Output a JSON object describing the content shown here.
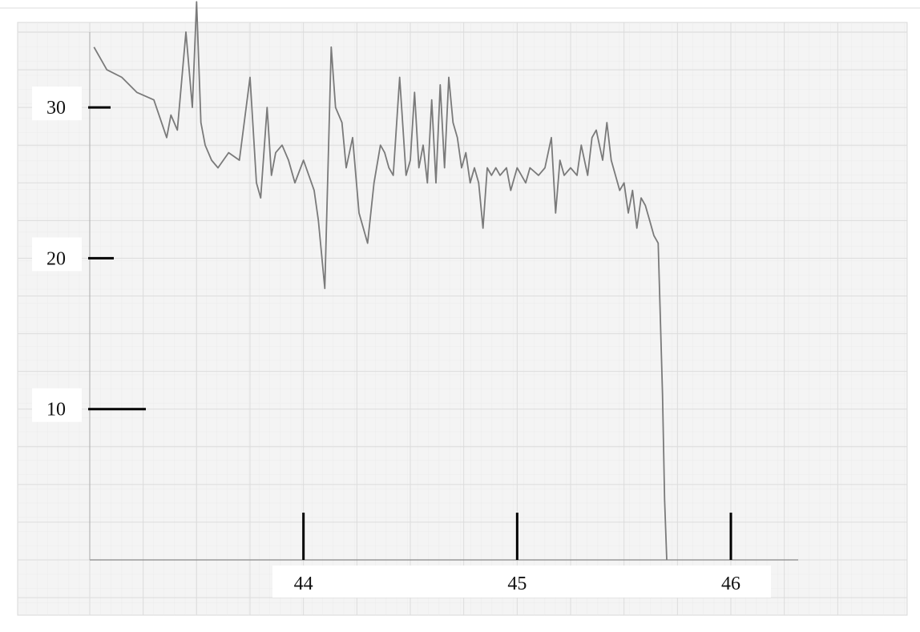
{
  "chart_data": {
    "type": "line",
    "title": "",
    "xlabel": "",
    "ylabel": "",
    "xlim": [
      43,
      46.33
    ],
    "ylim": [
      0,
      35
    ],
    "x_ticks": [
      {
        "value": 44,
        "label": "44"
      },
      {
        "value": 45,
        "label": "45"
      },
      {
        "value": 46,
        "label": "46"
      }
    ],
    "y_ticks": [
      {
        "value": 10,
        "label": "10"
      },
      {
        "value": 20,
        "label": "20"
      },
      {
        "value": 30,
        "label": "30"
      }
    ],
    "grid": true,
    "series": [
      {
        "color": "#7a7a7a",
        "x": [
          43.02,
          43.08,
          43.15,
          43.22,
          43.3,
          43.36,
          43.38,
          43.41,
          43.45,
          43.48,
          43.5,
          43.52,
          43.54,
          43.57,
          43.6,
          43.65,
          43.7,
          43.75,
          43.78,
          43.8,
          43.83,
          43.85,
          43.87,
          43.9,
          43.93,
          43.96,
          44.0,
          44.05,
          44.07,
          44.1,
          44.13,
          44.15,
          44.18,
          44.2,
          44.23,
          44.26,
          44.3,
          44.33,
          44.36,
          44.38,
          44.4,
          44.42,
          44.45,
          44.48,
          44.5,
          44.52,
          44.54,
          44.56,
          44.58,
          44.6,
          44.62,
          44.64,
          44.66,
          44.68,
          44.7,
          44.72,
          44.74,
          44.76,
          44.78,
          44.8,
          44.82,
          44.84,
          44.86,
          44.88,
          44.9,
          44.92,
          44.95,
          44.97,
          45.0,
          45.02,
          45.04,
          45.06,
          45.1,
          45.13,
          45.16,
          45.18,
          45.2,
          45.22,
          45.25,
          45.28,
          45.3,
          45.33,
          45.35,
          45.37,
          45.4,
          45.42,
          45.44,
          45.46,
          45.48,
          45.5,
          45.52,
          45.54,
          45.56,
          45.58,
          45.6,
          45.62,
          45.64,
          45.66,
          45.68,
          45.69,
          45.7
        ],
        "y": [
          34,
          32.5,
          32,
          31,
          30.5,
          28,
          29.5,
          28.5,
          35,
          30,
          37,
          29,
          27.5,
          26.5,
          26,
          27,
          26.5,
          32,
          25,
          24,
          30,
          25.5,
          27,
          27.5,
          26.5,
          25,
          26.5,
          24.5,
          22.5,
          18,
          34,
          30,
          29,
          26,
          28,
          23,
          21,
          25,
          27.5,
          27,
          26,
          25.5,
          32,
          25.5,
          26.5,
          31,
          26,
          27.5,
          25,
          30.5,
          25,
          31.5,
          26,
          32,
          29,
          28,
          26,
          27,
          25,
          26,
          25,
          22,
          26,
          25.5,
          26,
          25.5,
          26,
          24.5,
          26,
          25.5,
          25,
          26,
          25.5,
          26,
          28,
          23,
          26.5,
          25.5,
          26,
          25.5,
          27.5,
          25.5,
          28,
          28.5,
          26.5,
          29,
          26.5,
          25.5,
          24.5,
          25,
          23,
          24.5,
          22,
          24,
          23.5,
          22.5,
          21.5,
          21,
          11,
          4,
          0
        ]
      }
    ]
  }
}
